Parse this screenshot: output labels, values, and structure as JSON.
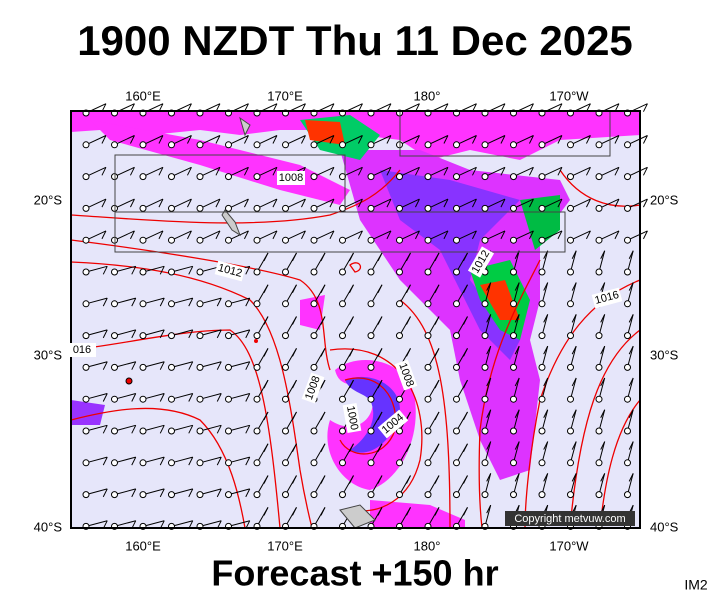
{
  "header": {
    "title": "1900 NZDT Thu 11 Dec 2025"
  },
  "map": {
    "top_labels": [
      "160°E",
      "170°E",
      "180°",
      "170°W"
    ],
    "bottom_labels": [
      "160°E",
      "170°E",
      "180°",
      "170°W"
    ],
    "left_labels": [
      "20°S",
      "30°S",
      "40°S"
    ],
    "right_labels": [
      "20°S",
      "30°S",
      "40°S"
    ],
    "isobar_labels": [
      "1008",
      "1012",
      "1016",
      "016",
      "1008",
      "1008",
      "1000",
      "1004",
      "1012"
    ],
    "copyright": "Copyright metvuw.com"
  },
  "footer": {
    "forecast": "Forecast +150 hr",
    "code": "IM2"
  }
}
